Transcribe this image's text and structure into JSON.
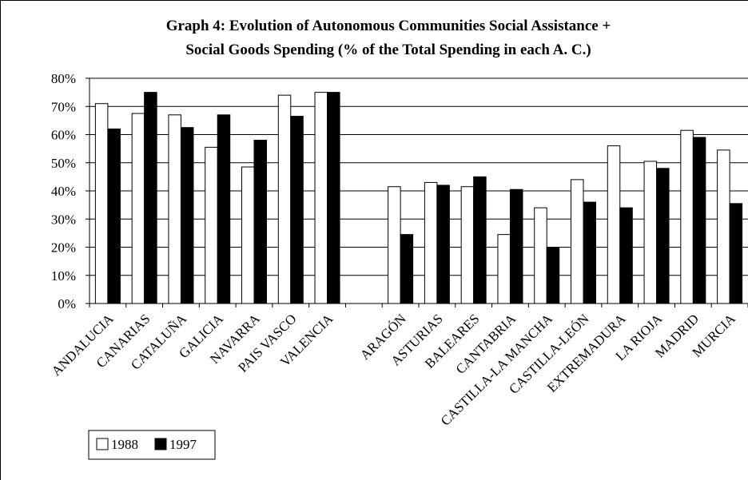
{
  "chart_data": {
    "type": "bar",
    "title_lines": [
      "Graph 4: Evolution of Autonomous Communities Social Assistance +",
      "Social Goods Spending (% of the Total Spending in each A. C.)"
    ],
    "categories": [
      "ANDALUCIA",
      "CANARIAS",
      "CATALUÑA",
      "GALICIA",
      "NAVARRA",
      "PAIS VASCO",
      "VALENCIA",
      "",
      "ARAGÓN",
      "ASTURIAS",
      "BALEARES",
      "CANTABRIA",
      "CASTILLA-LA MANCHA",
      "CASTILLA-LEÓN",
      "EXTREMADURA",
      "LA RIOJA",
      "MADRID",
      "MURCIA"
    ],
    "series": [
      {
        "name": "1988",
        "color": "#ffffff",
        "values": [
          71,
          67.5,
          67,
          55.5,
          48.5,
          74,
          75,
          null,
          41.5,
          43,
          41.5,
          24.5,
          34,
          44,
          56,
          50.5,
          61.5,
          54.5
        ]
      },
      {
        "name": "1997",
        "color": "#000000",
        "values": [
          62,
          75,
          62.5,
          67,
          58,
          66.5,
          75,
          null,
          24.5,
          42,
          45,
          40.5,
          20,
          36,
          34,
          48,
          59,
          35.5
        ]
      }
    ],
    "yticks": [
      "0%",
      "10%",
      "20%",
      "30%",
      "40%",
      "50%",
      "60%",
      "70%",
      "80%"
    ],
    "ylim": [
      0,
      80
    ],
    "grid": true,
    "legend_position": "bottom-left"
  }
}
